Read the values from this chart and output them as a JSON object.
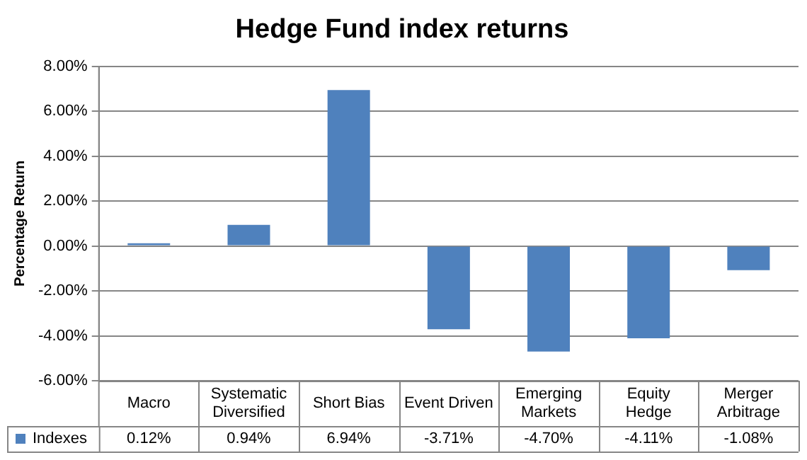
{
  "chart_data": {
    "type": "bar",
    "title": "Hedge Fund index returns",
    "ylabel": "Percentage Return",
    "categories": [
      "Macro",
      "Systematic Diversified",
      "Short Bias",
      "Event Driven",
      "Emerging Markets",
      "Equity Hedge",
      "Merger Arbitrage"
    ],
    "series": [
      {
        "name": "Indexes",
        "color": "#4f81bd",
        "values": [
          0.12,
          0.94,
          6.94,
          -3.71,
          -4.7,
          -4.11,
          -1.08
        ],
        "value_labels": [
          "0.12%",
          "0.94%",
          "6.94%",
          "-3.71%",
          "-4.70%",
          "-4.11%",
          "-1.08%"
        ]
      }
    ],
    "ylim": [
      -6,
      8
    ],
    "yticks": [
      {
        "value": -6,
        "label": "-6.00%"
      },
      {
        "value": -4,
        "label": "-4.00%"
      },
      {
        "value": -2,
        "label": "-2.00%"
      },
      {
        "value": 0,
        "label": "0.00%"
      },
      {
        "value": 2,
        "label": "2.00%"
      },
      {
        "value": 4,
        "label": "4.00%"
      },
      {
        "value": 6,
        "label": "6.00%"
      },
      {
        "value": 8,
        "label": "8.00%"
      }
    ],
    "grid": "y",
    "legend": "bottom"
  }
}
